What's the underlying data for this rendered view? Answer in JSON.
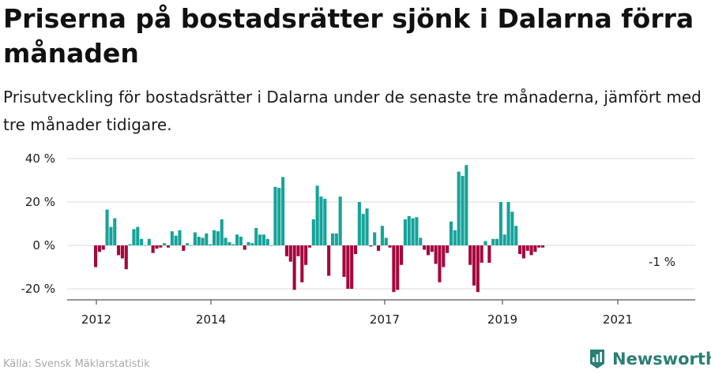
{
  "header": {
    "title": "Priserna på bostadsrätter sjönk i Dalarna förra månaden",
    "subtitle": "Prisutveckling för bostadsrätter i Dalarna under de senaste tre månaderna, jämfört med tre månader tidigare."
  },
  "footer": {
    "source": "Källa: Svensk Mäklarstatistik",
    "brand": "Newsworthy"
  },
  "colors": {
    "positive": "#16a39a",
    "negative": "#a5063e",
    "axis": "#555555",
    "brand": "#2b7f75"
  },
  "chart_data": {
    "type": "bar",
    "title": "",
    "xlabel": "",
    "ylabel": "",
    "ylim": [
      -25,
      40
    ],
    "y_ticks": [
      40,
      20,
      0,
      -20
    ],
    "y_tick_labels": [
      "40 %",
      "20 %",
      "0 %",
      "-20 %"
    ],
    "x_tick_labels": [
      "2012",
      "2014",
      "2017",
      "2019",
      "2021"
    ],
    "last_label": "-1 %",
    "series": [
      {
        "values": [
          -10,
          -3,
          -2,
          16.5,
          8.5,
          12.5,
          -4.5,
          -6,
          -11,
          0.5,
          7.5,
          8.5,
          3,
          0,
          3,
          -3.5,
          -1.5,
          -1,
          1,
          -1,
          6.5,
          4.5,
          7,
          -2.5,
          1,
          0,
          6,
          4,
          3.5,
          5.5,
          0.5,
          7,
          6.5,
          12,
          3.5,
          1.5,
          0.5,
          5,
          4,
          -2,
          1.5,
          1,
          8,
          5,
          5,
          3,
          0,
          27,
          26.5,
          31.5,
          -5,
          -7.5,
          -20.5,
          -5,
          -17,
          -9,
          -1,
          12,
          27.5,
          22.5,
          21.5,
          -14,
          5.5,
          5.5,
          22.5,
          -14.5,
          -20,
          -20,
          -4,
          20,
          14.5,
          17,
          -0.5,
          6,
          -2.5,
          9,
          3.5,
          -1,
          -21.5,
          -20.5,
          -9,
          12,
          13.5,
          12.5,
          13,
          3.5,
          -2,
          -4.5,
          -3,
          -8.5,
          -17,
          -10,
          -3.5,
          11,
          7,
          34,
          32,
          37,
          -9,
          -18.5,
          -21.5,
          -8,
          2,
          -8,
          3,
          3,
          20,
          5,
          20,
          15.5,
          9,
          -4,
          -6,
          -2.5,
          -4.5,
          -3,
          -1,
          -1
        ]
      }
    ]
  }
}
